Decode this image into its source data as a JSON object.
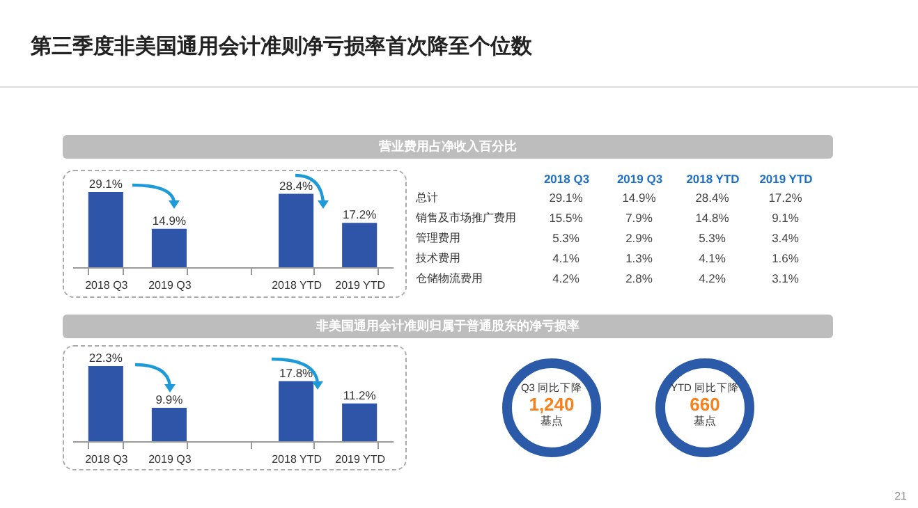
{
  "chart_data": [
    {
      "type": "other",
      "title": "第三季度非美国通用会计准则净亏损率首次降至个位数",
      "annotations": [
        "21"
      ]
    },
    {
      "type": "bar",
      "title": "营业费用占净收入百分比",
      "categories": [
        "2018 Q3",
        "2019 Q3",
        null,
        "2018 YTD",
        "2019 YTD"
      ],
      "values": [
        29.1,
        14.9,
        null,
        28.4,
        17.2
      ],
      "value_labels": [
        "29.1%",
        "14.9%",
        null,
        "28.4%",
        "17.2%"
      ],
      "color": "#2f55a8"
    },
    {
      "type": "other",
      "categories": [
        "总计",
        "销售及市场推广费用",
        "管理费用",
        "技术费用",
        "仓储物流费用"
      ],
      "series": [
        {
          "name": "2018 Q3",
          "values": [
            29.1,
            15.5,
            5.3,
            4.1,
            4.2
          ],
          "value_labels": [
            "29.1%",
            "15.5%",
            "5.3%",
            "4.1%",
            "4.2%"
          ]
        },
        {
          "name": "2019 Q3",
          "values": [
            14.9,
            7.9,
            2.9,
            1.3,
            2.8
          ],
          "value_labels": [
            "14.9%",
            "7.9%",
            "2.9%",
            "1.3%",
            "2.8%"
          ]
        },
        {
          "name": "2018 YTD",
          "values": [
            28.4,
            14.8,
            5.3,
            4.1,
            4.2
          ],
          "value_labels": [
            "28.4%",
            "14.8%",
            "5.3%",
            "4.1%",
            "4.2%"
          ]
        },
        {
          "name": "2019 YTD",
          "values": [
            17.2,
            9.1,
            3.4,
            1.6,
            3.1
          ],
          "value_labels": [
            "17.2%",
            "9.1%",
            "3.4%",
            "1.6%",
            "3.1%"
          ]
        }
      ]
    },
    {
      "type": "bar",
      "title": "非美国通用会计准则归属于普通股东的净亏损率",
      "categories": [
        "2018 Q3",
        "2019 Q3",
        null,
        "2018 YTD",
        "2019 YTD"
      ],
      "values": [
        22.3,
        9.9,
        null,
        17.8,
        11.2
      ],
      "value_labels": [
        "22.3%",
        "9.9%",
        null,
        "17.8%",
        "11.2%"
      ],
      "color": "#2f55a8"
    },
    {
      "type": "other",
      "annotations": [
        "Q3 同比下降",
        "1,240",
        "基点"
      ]
    },
    {
      "type": "other",
      "annotations": [
        "YTD 同比下降",
        "660",
        "基点"
      ]
    }
  ]
}
